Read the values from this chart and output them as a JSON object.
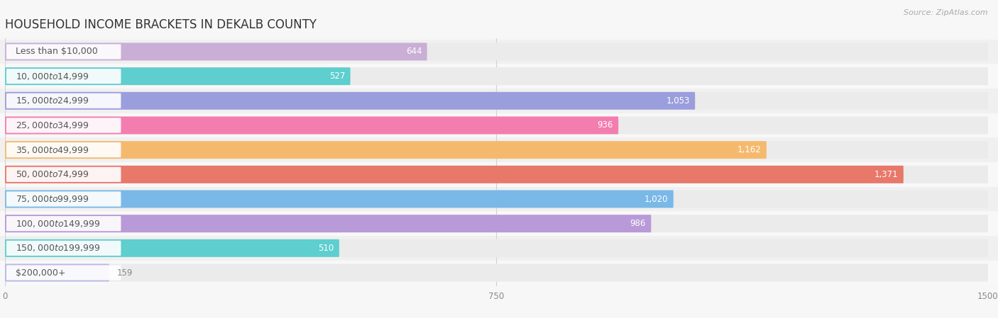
{
  "title": "HOUSEHOLD INCOME BRACKETS IN DEKALB COUNTY",
  "source": "Source: ZipAtlas.com",
  "categories": [
    "Less than $10,000",
    "$10,000 to $14,999",
    "$15,000 to $24,999",
    "$25,000 to $34,999",
    "$35,000 to $49,999",
    "$50,000 to $74,999",
    "$75,000 to $99,999",
    "$100,000 to $149,999",
    "$150,000 to $199,999",
    "$200,000+"
  ],
  "values": [
    644,
    527,
    1053,
    936,
    1162,
    1371,
    1020,
    986,
    510,
    159
  ],
  "bar_colors": [
    "#c9aed6",
    "#5ecece",
    "#9b9edd",
    "#f47db0",
    "#f5b96e",
    "#e8786a",
    "#7ab8e8",
    "#b89ad8",
    "#5ecece",
    "#b8b8e8"
  ],
  "xlim": [
    0,
    1500
  ],
  "xticks": [
    0,
    750,
    1500
  ],
  "background_color": "#f7f7f7",
  "bar_bg_color": "#ebebeb",
  "row_bg_even": "#f0f0f0",
  "row_bg_odd": "#f8f8f8",
  "label_color_inside": "#ffffff",
  "label_color_outside": "#888888",
  "title_fontsize": 12,
  "label_fontsize": 8.5,
  "category_fontsize": 9,
  "source_fontsize": 8,
  "inside_threshold": 400
}
